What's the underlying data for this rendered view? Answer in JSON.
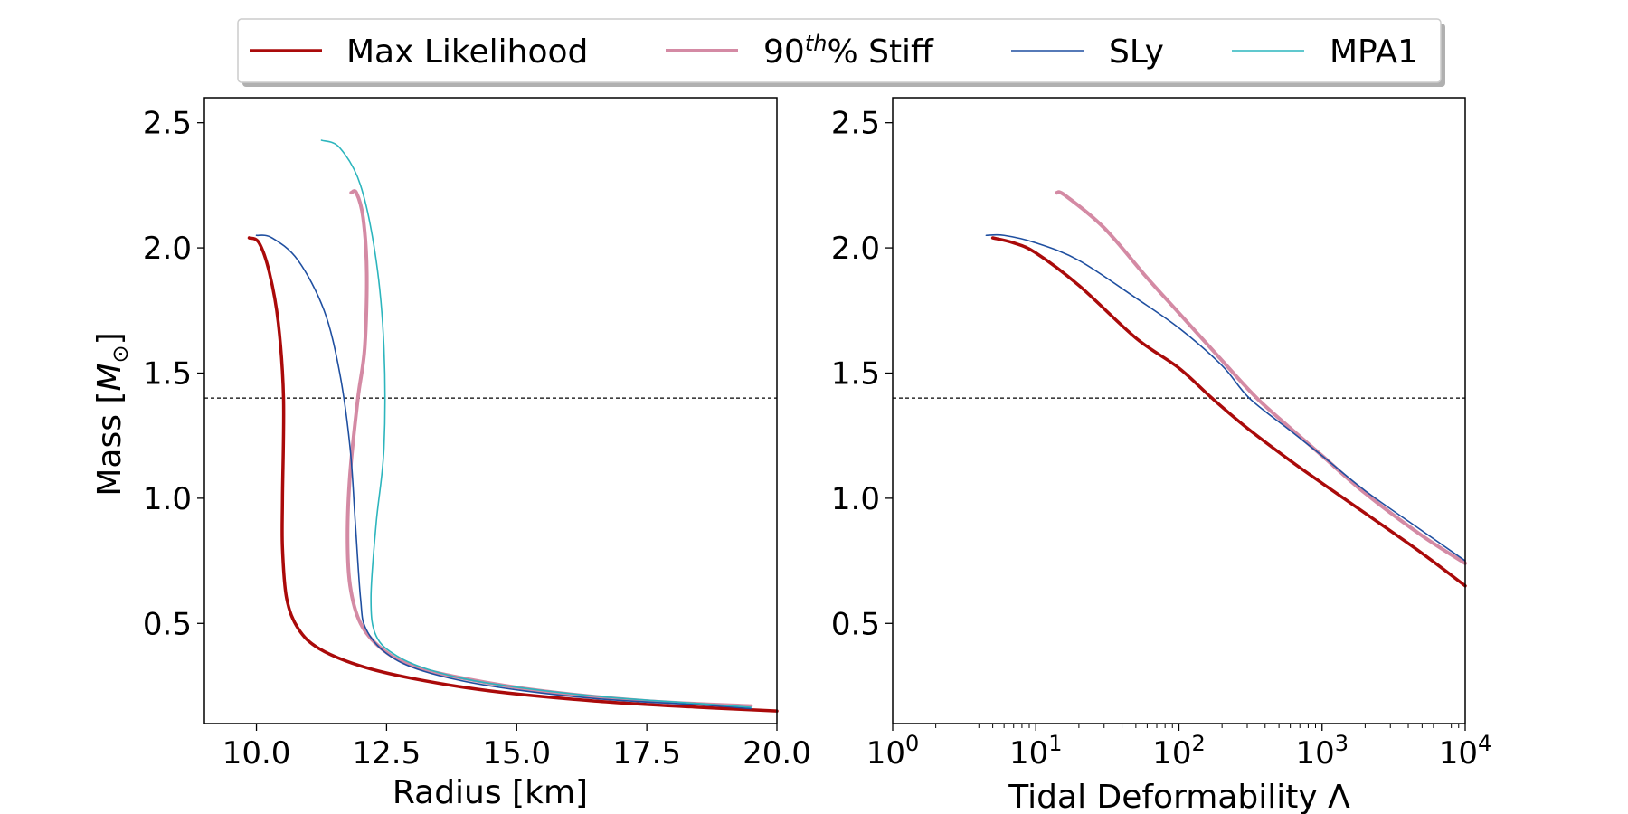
{
  "legend": {
    "placement": "top-center",
    "items": [
      {
        "label": "Max Likelihood",
        "color": "#aa0a0a",
        "width": 3.5
      },
      {
        "label_prefix": "90",
        "label_sup": "th",
        "label_suffix": "% Stiff",
        "color": "#d48aa4",
        "width": 4
      },
      {
        "label": "SLy",
        "color": "#1f4fa0",
        "width": 1.6
      },
      {
        "label": "MPA1",
        "color": "#2cb5bd",
        "width": 1.6
      }
    ]
  },
  "chart_data": [
    {
      "type": "line",
      "xlabel": "Radius [km]",
      "ylabel_prefix": "Mass [",
      "ylabel_symbol": "M",
      "ylabel_sub": "⊙",
      "ylabel_suffix": "]",
      "xlim": [
        9.0,
        20.0
      ],
      "ylim": [
        0.1,
        2.6
      ],
      "xticks": [
        10.0,
        12.5,
        15.0,
        17.5,
        20.0
      ],
      "xtick_labels": [
        "10.0",
        "12.5",
        "15.0",
        "17.5",
        "20.0"
      ],
      "yticks": [
        0.5,
        1.0,
        1.5,
        2.0,
        2.5
      ],
      "ytick_labels": [
        "0.5",
        "1.0",
        "1.5",
        "2.0",
        "2.5"
      ],
      "grid": false,
      "reference_line_y": 1.4,
      "series": [
        {
          "name": "Max Likelihood",
          "points": [
            [
              9.86,
              2.04
            ],
            [
              10.05,
              2.02
            ],
            [
              10.25,
              1.9
            ],
            [
              10.42,
              1.7
            ],
            [
              10.52,
              1.4
            ],
            [
              10.5,
              1.0
            ],
            [
              10.5,
              0.8
            ],
            [
              10.58,
              0.6
            ],
            [
              10.8,
              0.48
            ],
            [
              11.2,
              0.4
            ],
            [
              12.0,
              0.33
            ],
            [
              13.0,
              0.28
            ],
            [
              14.5,
              0.23
            ],
            [
              16.5,
              0.19
            ],
            [
              18.5,
              0.165
            ],
            [
              20.0,
              0.15
            ]
          ]
        },
        {
          "name": "90th% Stiff",
          "points": [
            [
              11.82,
              2.22
            ],
            [
              11.92,
              2.22
            ],
            [
              12.05,
              2.12
            ],
            [
              12.12,
              1.9
            ],
            [
              12.08,
              1.6
            ],
            [
              11.95,
              1.4
            ],
            [
              11.8,
              1.1
            ],
            [
              11.75,
              0.85
            ],
            [
              11.8,
              0.65
            ],
            [
              12.0,
              0.5
            ],
            [
              12.4,
              0.4
            ],
            [
              13.0,
              0.33
            ],
            [
              14.0,
              0.28
            ],
            [
              15.5,
              0.23
            ],
            [
              17.5,
              0.19
            ],
            [
              19.5,
              0.17
            ]
          ]
        },
        {
          "name": "SLy",
          "points": [
            [
              10.0,
              2.05
            ],
            [
              10.3,
              2.04
            ],
            [
              10.8,
              1.95
            ],
            [
              11.3,
              1.75
            ],
            [
              11.6,
              1.5
            ],
            [
              11.8,
              1.2
            ],
            [
              11.9,
              0.9
            ],
            [
              12.0,
              0.6
            ],
            [
              12.1,
              0.48
            ],
            [
              12.5,
              0.38
            ],
            [
              13.2,
              0.31
            ],
            [
              14.5,
              0.25
            ],
            [
              16.5,
              0.2
            ],
            [
              18.5,
              0.175
            ],
            [
              19.5,
              0.16
            ]
          ]
        },
        {
          "name": "MPA1",
          "points": [
            [
              11.25,
              2.43
            ],
            [
              11.6,
              2.4
            ],
            [
              12.0,
              2.25
            ],
            [
              12.3,
              1.95
            ],
            [
              12.45,
              1.6
            ],
            [
              12.45,
              1.2
            ],
            [
              12.3,
              0.9
            ],
            [
              12.2,
              0.6
            ],
            [
              12.3,
              0.45
            ],
            [
              12.7,
              0.37
            ],
            [
              13.4,
              0.31
            ],
            [
              14.5,
              0.26
            ],
            [
              16.5,
              0.21
            ],
            [
              18.5,
              0.18
            ],
            [
              19.5,
              0.165
            ]
          ]
        }
      ]
    },
    {
      "type": "line",
      "xscale": "log",
      "xlabel": "Tidal Deformability Λ",
      "xlim": [
        1,
        10000
      ],
      "ylim": [
        0.1,
        2.6
      ],
      "xticks": [
        1,
        10,
        100,
        1000,
        10000
      ],
      "xtick_labels": [
        {
          "base": "10",
          "exp": "0"
        },
        {
          "base": "10",
          "exp": "1"
        },
        {
          "base": "10",
          "exp": "2"
        },
        {
          "base": "10",
          "exp": "3"
        },
        {
          "base": "10",
          "exp": "4"
        }
      ],
      "yticks": [
        0.5,
        1.0,
        1.5,
        2.0,
        2.5
      ],
      "ytick_labels": [
        "0.5",
        "1.0",
        "1.5",
        "2.0",
        "2.5"
      ],
      "grid": false,
      "reference_line_y": 1.4,
      "series": [
        {
          "name": "Max Likelihood",
          "points": [
            [
              5.0,
              2.04
            ],
            [
              7.0,
              2.02
            ],
            [
              10,
              1.98
            ],
            [
              20,
              1.85
            ],
            [
              50,
              1.64
            ],
            [
              100,
              1.52
            ],
            [
              170,
              1.4
            ],
            [
              300,
              1.28
            ],
            [
              600,
              1.15
            ],
            [
              1000,
              1.06
            ],
            [
              2000,
              0.94
            ],
            [
              5000,
              0.78
            ],
            [
              10000,
              0.65
            ]
          ]
        },
        {
          "name": "90th% Stiff",
          "points": [
            [
              14,
              2.22
            ],
            [
              16,
              2.21
            ],
            [
              30,
              2.08
            ],
            [
              60,
              1.88
            ],
            [
              100,
              1.74
            ],
            [
              200,
              1.55
            ],
            [
              350,
              1.4
            ],
            [
              600,
              1.28
            ],
            [
              1000,
              1.17
            ],
            [
              2000,
              1.02
            ],
            [
              5000,
              0.85
            ],
            [
              10000,
              0.74
            ]
          ]
        },
        {
          "name": "SLy",
          "points": [
            [
              4.5,
              2.05
            ],
            [
              6.0,
              2.05
            ],
            [
              10,
              2.02
            ],
            [
              20,
              1.95
            ],
            [
              50,
              1.8
            ],
            [
              100,
              1.68
            ],
            [
              200,
              1.53
            ],
            [
              310,
              1.4
            ],
            [
              600,
              1.27
            ],
            [
              1000,
              1.17
            ],
            [
              2000,
              1.03
            ],
            [
              5000,
              0.87
            ],
            [
              10000,
              0.75
            ]
          ]
        }
      ]
    }
  ]
}
